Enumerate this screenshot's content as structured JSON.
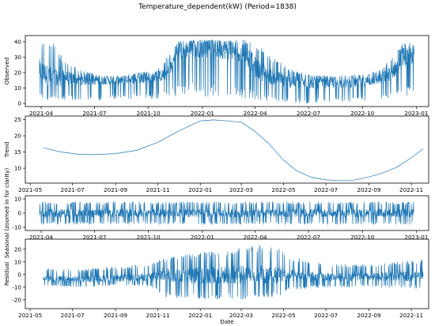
{
  "figure": {
    "title": "Temperature_dependent(kW) (Period=1838)",
    "xlabel": "Date"
  },
  "chart_data": [
    {
      "type": "line",
      "name": "observed",
      "ylabel": "Observed",
      "ylim": [
        -2,
        44
      ],
      "yticks": [
        0,
        10,
        20,
        30,
        40
      ],
      "xlim": [
        "2021-03-05",
        "2023-01-22"
      ],
      "xticks": [
        "2021-04",
        "2021-07",
        "2021-10",
        "2022-01",
        "2022-04",
        "2022-07",
        "2022-10",
        "2023-01"
      ],
      "x_range": [
        "2021-03-29",
        "2022-12-28"
      ],
      "profile": {
        "x": [
          "2021-03-29",
          "2021-04-20",
          "2021-05-10",
          "2021-06-10",
          "2021-07-15",
          "2021-08-15",
          "2021-09-15",
          "2021-10-15",
          "2021-11-05",
          "2021-11-20",
          "2021-12-15",
          "2022-01-15",
          "2022-02-15",
          "2022-03-15",
          "2022-04-05",
          "2022-05-01",
          "2022-06-01",
          "2022-07-01",
          "2022-08-01",
          "2022-09-01",
          "2022-10-01",
          "2022-11-01",
          "2022-11-20",
          "2022-12-10",
          "2022-12-28"
        ],
        "base": [
          22,
          16,
          17,
          15,
          15,
          15,
          16,
          17,
          20,
          34,
          36,
          36,
          35,
          33,
          22,
          17,
          14,
          13,
          13,
          13,
          14,
          16,
          20,
          30,
          32
        ],
        "low": [
          2,
          2,
          2,
          2,
          2,
          3,
          3,
          3,
          4,
          5,
          6,
          4,
          4,
          3,
          2,
          1,
          0,
          0,
          1,
          1,
          1,
          2,
          3,
          4,
          4
        ],
        "high": [
          40,
          41,
          28,
          21,
          18,
          18,
          20,
          21,
          32,
          40,
          41,
          41,
          41,
          41,
          38,
          30,
          22,
          19,
          18,
          18,
          19,
          22,
          30,
          40,
          40
        ]
      }
    },
    {
      "type": "line",
      "name": "trend",
      "ylabel": "Trend",
      "ylim": [
        5.4,
        26.1
      ],
      "yticks": [
        10,
        15,
        20,
        25
      ],
      "xlim": [
        "2021-04-24",
        "2022-11-26"
      ],
      "xticks": [
        "2021-05",
        "2021-07",
        "2021-09",
        "2021-11",
        "2022-01",
        "2022-03",
        "2022-05",
        "2022-07",
        "2022-09",
        "2022-11"
      ],
      "x": [
        "2021-05-20",
        "2021-06-15",
        "2021-07-10",
        "2021-08-01",
        "2021-09-01",
        "2021-10-01",
        "2021-11-01",
        "2021-12-01",
        "2022-01-01",
        "2022-01-20",
        "2022-02-10",
        "2022-03-01",
        "2022-03-20",
        "2022-04-10",
        "2022-05-01",
        "2022-05-20",
        "2022-06-10",
        "2022-07-01",
        "2022-07-20",
        "2022-08-10",
        "2022-09-01",
        "2022-09-20",
        "2022-10-10",
        "2022-11-01",
        "2022-11-18"
      ],
      "y": [
        16.3,
        15.0,
        14.3,
        14.2,
        14.5,
        15.5,
        18.0,
        21.5,
        24.6,
        24.9,
        24.6,
        24.2,
        21.5,
        17.5,
        12.5,
        9.2,
        7.2,
        6.4,
        6.2,
        6.3,
        7.3,
        8.5,
        10.2,
        13.2,
        16.0
      ]
    },
    {
      "type": "line",
      "name": "seasonal",
      "ylabel": "Seasonal (zoomed in for clarity)",
      "ylim": [
        -12.2,
        12.2
      ],
      "yticks": [
        -10,
        0,
        10
      ],
      "xlim": [
        "2021-03-05",
        "2023-01-22"
      ],
      "xticks": [
        "2021-04",
        "2021-07",
        "2021-10",
        "2022-01",
        "2022-04",
        "2022-07",
        "2022-10",
        "2023-01"
      ],
      "x_range": [
        "2021-03-29",
        "2022-12-28"
      ],
      "profile": {
        "x": [
          "2021-03-29",
          "2022-12-28"
        ],
        "base": [
          0,
          0
        ],
        "low": [
          -8,
          -8
        ],
        "high": [
          8,
          8
        ]
      }
    },
    {
      "type": "line",
      "name": "residual",
      "ylabel": "Residual",
      "ylim": [
        -27,
        28
      ],
      "yticks": [
        -20,
        -10,
        0,
        10,
        20
      ],
      "xlim": [
        "2021-04-24",
        "2022-11-26"
      ],
      "xticks": [
        "2021-05",
        "2021-07",
        "2021-09",
        "2021-11",
        "2022-01",
        "2022-03",
        "2022-05",
        "2022-07",
        "2022-09",
        "2022-11"
      ],
      "x_range": [
        "2021-05-20",
        "2022-11-18"
      ],
      "profile": {
        "x": [
          "2021-05-20",
          "2021-07-01",
          "2021-09-01",
          "2021-10-20",
          "2021-11-10",
          "2022-01-01",
          "2022-03-01",
          "2022-04-15",
          "2022-05-15",
          "2022-07-01",
          "2022-09-01",
          "2022-11-18"
        ],
        "base": [
          -3,
          -4,
          -3,
          -2,
          0,
          -1,
          0,
          0,
          -1,
          -2,
          -2,
          -1
        ],
        "low": [
          -9,
          -10,
          -9,
          -9,
          -18,
          -20,
          -20,
          -19,
          -12,
          -10,
          -10,
          -11
        ],
        "high": [
          5,
          4,
          6,
          9,
          13,
          18,
          21,
          25,
          14,
          8,
          8,
          12
        ]
      }
    }
  ]
}
